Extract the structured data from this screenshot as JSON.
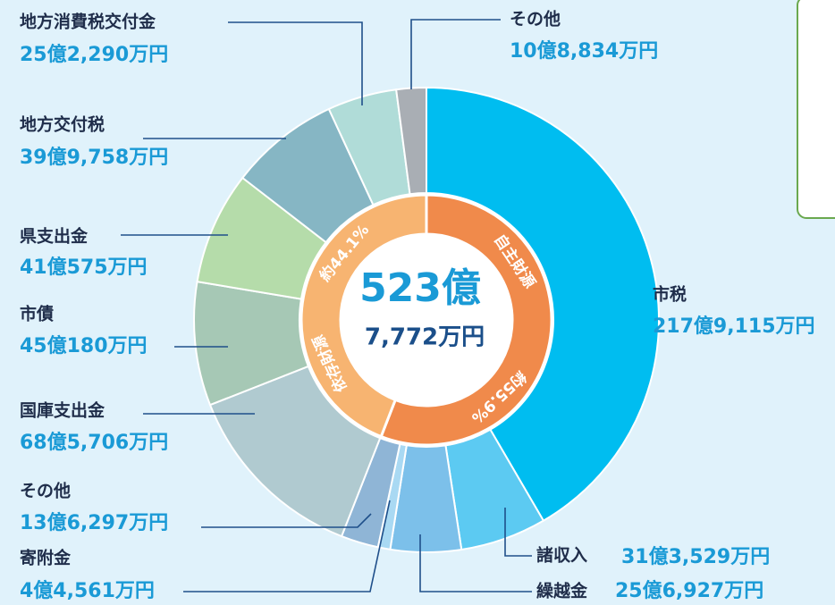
{
  "chart_data": {
    "type": "pie",
    "categories": [
      "市税",
      "諸収入",
      "繰越金",
      "寄附金",
      "その他",
      "国庫支出金",
      "市債",
      "県支出金",
      "地方交付税",
      "地方消費税交付金",
      "その他"
    ],
    "values": [
      2179115,
      313529,
      256927,
      44561,
      136297,
      685706,
      450180,
      410575,
      399758,
      252290,
      108834
    ],
    "value_labels": [
      "217億9,115万円",
      "31億3,529万円",
      "25億6,927万円",
      "4億4,561万円",
      "13億6,297万円",
      "68億5,706万円",
      "45億180万円",
      "41億575万円",
      "39億9,758万円",
      "25億2,290万円",
      "10億8,834万円"
    ],
    "colors": [
      "#00bdf0",
      "#5ccaf2",
      "#7cc0ea",
      "#a9d9f3",
      "#8fb5d6",
      "#b0cad0",
      "#a6c8b5",
      "#b5dcaa",
      "#86b6c4",
      "#b0dcd8",
      "#a9aeb4"
    ],
    "inner": {
      "categories": [
        "自主財源",
        "依存財源"
      ],
      "values": [
        55.9,
        44.1
      ],
      "value_labels": [
        "約55.9%",
        "約44.1%"
      ],
      "colors": [
        "#f08a4b",
        "#f7b471"
      ]
    },
    "total_label": [
      "523億",
      "7,772万円"
    ]
  }
}
